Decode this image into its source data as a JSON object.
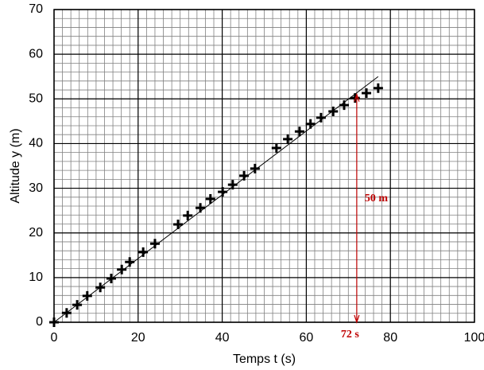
{
  "chart_data": {
    "type": "scatter",
    "x_label": "Temps t (s)",
    "y_label": "Altitude y (m)",
    "xlim": [
      0,
      100
    ],
    "xticks": [
      0,
      20,
      40,
      60,
      80,
      100
    ],
    "ylim": [
      0,
      70
    ],
    "yticks": [
      0,
      10,
      20,
      30,
      40,
      50,
      60,
      70
    ],
    "grid": true,
    "minor_xstep": 2,
    "minor_ystep": 2,
    "color": "#000000",
    "x": [
      0,
      3,
      5.5,
      7.9,
      11,
      13.6,
      16.1,
      18,
      21.2,
      24,
      29.5,
      31.8,
      34.8,
      37.2,
      40.1,
      42.5,
      45.2,
      47.8,
      52.9,
      55.6,
      58.4,
      61,
      63.5,
      66.4,
      69,
      71.6,
      74.3,
      77.1
    ],
    "values": [
      0,
      2.1,
      3.9,
      5.9,
      7.8,
      9.8,
      11.8,
      13.5,
      15.7,
      17.6,
      21.9,
      23.9,
      25.6,
      27.6,
      29.2,
      30.8,
      32.8,
      34.4,
      39,
      41,
      42.7,
      44.4,
      45.8,
      47.2,
      48.6,
      50.2,
      51.3,
      52.4
    ],
    "fit_line": {
      "x": [
        0,
        77.1
      ],
      "y": [
        0,
        55
      ]
    },
    "arrow": {
      "x": 72,
      "y": [
        0,
        51
      ],
      "color": "#c00000"
    },
    "annotations": [
      "50 m",
      "72 s"
    ]
  }
}
